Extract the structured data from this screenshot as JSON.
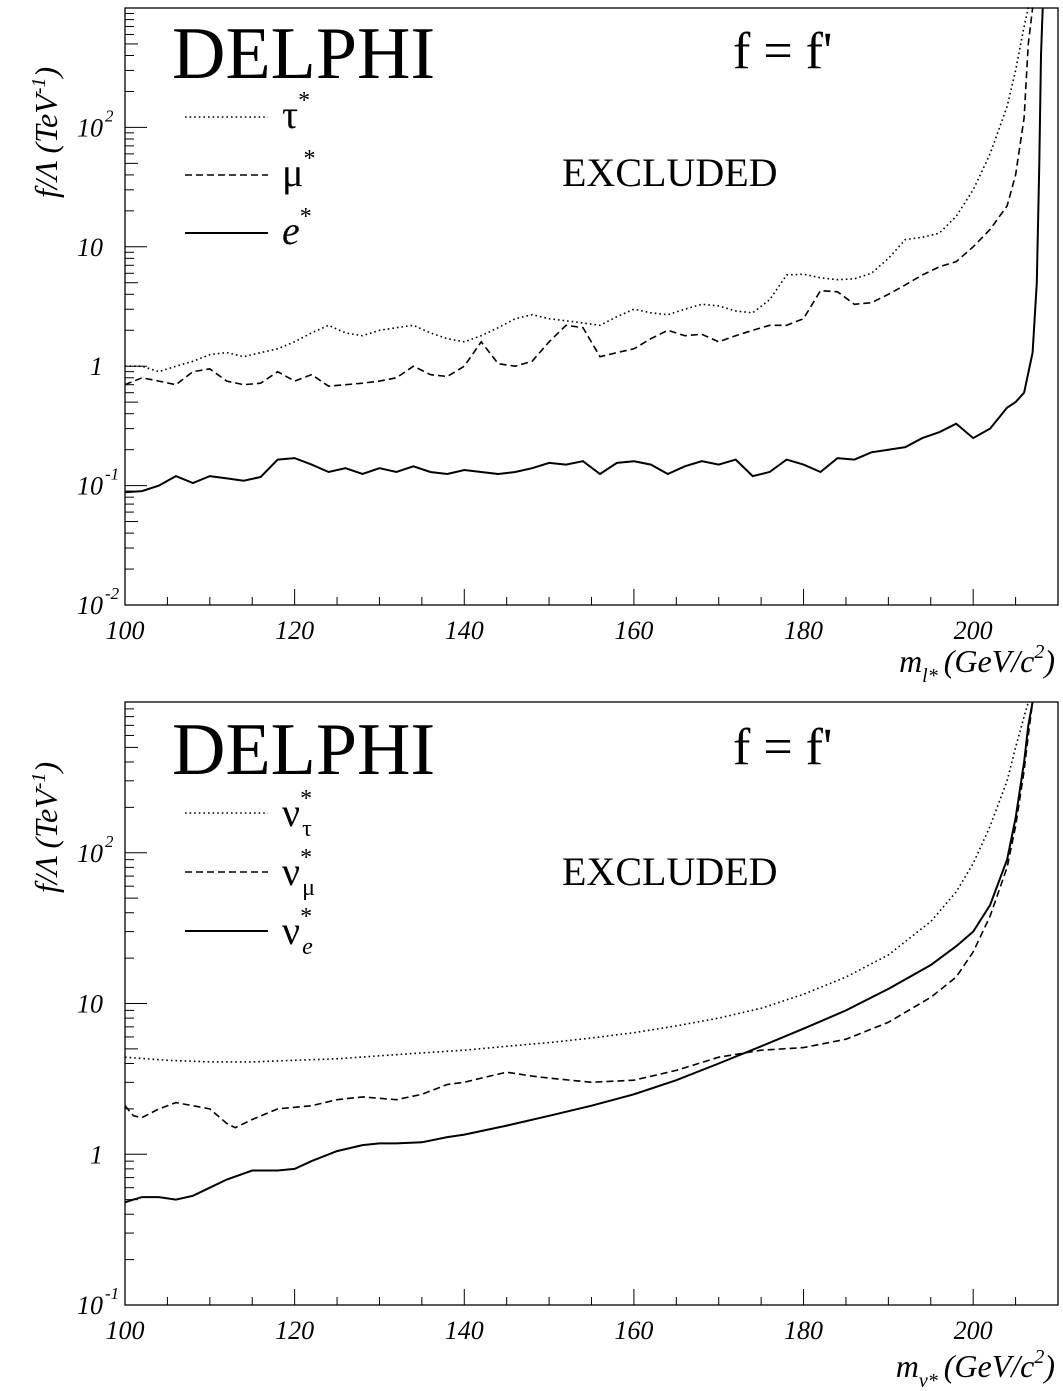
{
  "chart_data": [
    {
      "type": "line",
      "title": "DELPHI",
      "condition": "f = f'",
      "annotation": "EXCLUDED",
      "xlabel": "m",
      "xlabel_sub": "l*",
      "xlabel_units": "(GeV/c",
      "xlabel_units_sup": "2",
      "xlabel_units_end": ")",
      "ylabel": "f/Λ (TeV",
      "ylabel_sup": "-1",
      "ylabel_end": ")",
      "y_scale": "log",
      "xlim": [
        100,
        210
      ],
      "ylim": [
        0.01,
        1000
      ],
      "x_ticks": [
        "100",
        "120",
        "140",
        "160",
        "180",
        "200"
      ],
      "y_ticks": [
        {
          "value": 0.01,
          "base": "10",
          "exp": "-2"
        },
        {
          "value": 0.1,
          "base": "10",
          "exp": "-1"
        },
        {
          "value": 1,
          "base": "1",
          "exp": ""
        },
        {
          "value": 10,
          "base": "10",
          "exp": ""
        },
        {
          "value": 100,
          "base": "10",
          "exp": "2"
        }
      ],
      "legend_position": "top-left",
      "series": [
        {
          "name": "τ",
          "name_sup": "*",
          "name_style": "upright",
          "line_style": "dotted",
          "x": [
            100,
            102,
            104,
            106,
            108,
            110,
            112,
            114,
            116,
            118,
            120,
            122,
            124,
            126,
            128,
            130,
            132,
            134,
            136,
            138,
            140,
            142,
            144,
            146,
            148,
            150,
            152,
            154,
            156,
            158,
            160,
            162,
            164,
            166,
            168,
            170,
            172,
            174,
            176,
            178,
            180,
            182,
            184,
            186,
            188,
            190,
            192,
            194,
            196,
            198,
            200,
            202,
            204,
            205,
            206,
            206.5,
            207
          ],
          "y": [
            1.0,
            1.0,
            0.9,
            1.0,
            1.1,
            1.25,
            1.3,
            1.2,
            1.3,
            1.4,
            1.6,
            1.9,
            2.2,
            1.9,
            1.8,
            2.0,
            2.1,
            2.2,
            1.9,
            1.7,
            1.6,
            1.8,
            2.1,
            2.5,
            2.7,
            2.5,
            2.4,
            2.3,
            2.2,
            2.6,
            3.0,
            2.8,
            2.7,
            3.0,
            3.3,
            3.2,
            2.9,
            2.8,
            3.6,
            5.8,
            5.9,
            5.5,
            5.3,
            5.4,
            6.0,
            8.0,
            11.5,
            12.0,
            13.0,
            18.0,
            30.0,
            60.0,
            150.0,
            300.0,
            700.0,
            1000.0,
            1000.0
          ]
        },
        {
          "name": "μ",
          "name_sup": "*",
          "name_style": "upright",
          "line_style": "dashed",
          "x": [
            100,
            102,
            104,
            106,
            108,
            110,
            112,
            114,
            116,
            118,
            120,
            122,
            124,
            126,
            128,
            130,
            132,
            134,
            136,
            138,
            140,
            142,
            144,
            146,
            148,
            150,
            152,
            154,
            156,
            158,
            160,
            162,
            164,
            166,
            168,
            170,
            172,
            174,
            176,
            178,
            180,
            182,
            184,
            186,
            188,
            190,
            192,
            194,
            196,
            198,
            200,
            202,
            204,
            205,
            206,
            206.5,
            207
          ],
          "y": [
            0.7,
            0.8,
            0.75,
            0.7,
            0.9,
            0.95,
            0.75,
            0.7,
            0.72,
            0.9,
            0.75,
            0.85,
            0.68,
            0.7,
            0.72,
            0.75,
            0.8,
            1.0,
            0.85,
            0.82,
            1.0,
            1.6,
            1.05,
            1.0,
            1.1,
            1.6,
            2.2,
            2.1,
            1.2,
            1.3,
            1.4,
            1.7,
            2.0,
            1.8,
            1.85,
            1.6,
            1.8,
            2.0,
            2.2,
            2.2,
            2.5,
            4.3,
            4.2,
            3.3,
            3.4,
            4.0,
            4.8,
            5.8,
            6.8,
            7.5,
            10.0,
            14.0,
            22.0,
            40.0,
            120.0,
            500.0,
            1000.0
          ]
        },
        {
          "name": "e",
          "name_sup": "*",
          "name_style": "italic",
          "line_style": "solid",
          "x": [
            100,
            102,
            104,
            106,
            108,
            110,
            112,
            114,
            116,
            118,
            120,
            122,
            124,
            126,
            128,
            130,
            132,
            134,
            136,
            138,
            140,
            142,
            144,
            146,
            148,
            150,
            152,
            154,
            156,
            158,
            160,
            162,
            164,
            166,
            168,
            170,
            172,
            174,
            176,
            178,
            180,
            182,
            184,
            186,
            188,
            190,
            192,
            194,
            196,
            198,
            200,
            202,
            204,
            205,
            206,
            207,
            207.5,
            207.8,
            208,
            208.2
          ],
          "y": [
            0.088,
            0.09,
            0.1,
            0.12,
            0.105,
            0.12,
            0.115,
            0.11,
            0.118,
            0.165,
            0.17,
            0.15,
            0.13,
            0.14,
            0.125,
            0.14,
            0.13,
            0.145,
            0.13,
            0.125,
            0.135,
            0.13,
            0.125,
            0.13,
            0.14,
            0.155,
            0.15,
            0.16,
            0.125,
            0.155,
            0.16,
            0.15,
            0.125,
            0.145,
            0.16,
            0.15,
            0.165,
            0.12,
            0.13,
            0.165,
            0.15,
            0.13,
            0.17,
            0.165,
            0.19,
            0.2,
            0.21,
            0.25,
            0.28,
            0.33,
            0.25,
            0.3,
            0.45,
            0.5,
            0.6,
            1.3,
            5.0,
            50.0,
            400.0,
            1000.0
          ]
        }
      ]
    },
    {
      "type": "line",
      "title": "DELPHI",
      "condition": "f = f'",
      "annotation": "EXCLUDED",
      "xlabel": "m",
      "xlabel_sub": "ν*",
      "xlabel_units": "(GeV/c",
      "xlabel_units_sup": "2",
      "xlabel_units_end": ")",
      "ylabel": "f/Λ (TeV",
      "ylabel_sup": "-1",
      "ylabel_end": ")",
      "y_scale": "log",
      "xlim": [
        100,
        210
      ],
      "ylim": [
        0.1,
        1000
      ],
      "x_ticks": [
        "100",
        "120",
        "140",
        "160",
        "180",
        "200"
      ],
      "y_ticks": [
        {
          "value": 0.1,
          "base": "10",
          "exp": "-1"
        },
        {
          "value": 1,
          "base": "1",
          "exp": ""
        },
        {
          "value": 10,
          "base": "10",
          "exp": ""
        },
        {
          "value": 100,
          "base": "10",
          "exp": "2"
        }
      ],
      "legend_position": "top-left",
      "series": [
        {
          "name": "ν",
          "name_sup": "*",
          "name_sub": "τ",
          "line_style": "dotted",
          "x": [
            100,
            105,
            110,
            115,
            120,
            125,
            130,
            135,
            140,
            145,
            150,
            155,
            160,
            165,
            170,
            175,
            180,
            185,
            190,
            195,
            198,
            200,
            202,
            204,
            205,
            206,
            206.5
          ],
          "y": [
            4.4,
            4.2,
            4.1,
            4.1,
            4.2,
            4.3,
            4.5,
            4.7,
            4.9,
            5.2,
            5.5,
            5.9,
            6.4,
            7.1,
            8.0,
            9.3,
            11.5,
            15.0,
            21.0,
            35.0,
            55.0,
            85.0,
            150.0,
            300.0,
            500.0,
            800.0,
            1000.0
          ]
        },
        {
          "name": "ν",
          "name_sup": "*",
          "name_sub": "μ",
          "line_style": "dashed",
          "x": [
            100,
            101,
            102,
            104,
            106,
            108,
            110,
            112,
            113,
            115,
            118,
            120,
            122,
            125,
            128,
            130,
            132,
            135,
            138,
            140,
            142,
            145,
            148,
            150,
            155,
            160,
            165,
            170,
            175,
            180,
            185,
            190,
            195,
            198,
            200,
            202,
            204,
            205,
            206,
            206.5,
            207
          ],
          "y": [
            2.1,
            1.8,
            1.75,
            2.0,
            2.2,
            2.1,
            2.0,
            1.6,
            1.5,
            1.7,
            2.0,
            2.05,
            2.1,
            2.3,
            2.4,
            2.35,
            2.3,
            2.5,
            2.9,
            3.0,
            3.2,
            3.5,
            3.3,
            3.2,
            3.0,
            3.1,
            3.6,
            4.4,
            4.9,
            5.1,
            5.8,
            7.5,
            11.0,
            15.0,
            22.0,
            38.0,
            80.0,
            150.0,
            350.0,
            600.0,
            1000.0
          ]
        },
        {
          "name": "ν",
          "name_sup": "*",
          "name_sub": "e",
          "line_style": "solid",
          "x": [
            100,
            101,
            102,
            104,
            106,
            108,
            110,
            112,
            115,
            118,
            120,
            122,
            125,
            128,
            130,
            132,
            135,
            138,
            140,
            145,
            150,
            155,
            160,
            165,
            170,
            175,
            180,
            185,
            190,
            195,
            198,
            200,
            202,
            204,
            205,
            206,
            206.5,
            207
          ],
          "y": [
            0.48,
            0.5,
            0.52,
            0.52,
            0.5,
            0.53,
            0.6,
            0.68,
            0.78,
            0.78,
            0.8,
            0.9,
            1.05,
            1.15,
            1.18,
            1.18,
            1.2,
            1.3,
            1.35,
            1.55,
            1.8,
            2.1,
            2.5,
            3.1,
            4.0,
            5.2,
            6.8,
            9.0,
            12.5,
            18.0,
            24.0,
            30.0,
            45.0,
            90.0,
            170.0,
            400.0,
            700.0,
            1000.0
          ]
        }
      ]
    }
  ]
}
